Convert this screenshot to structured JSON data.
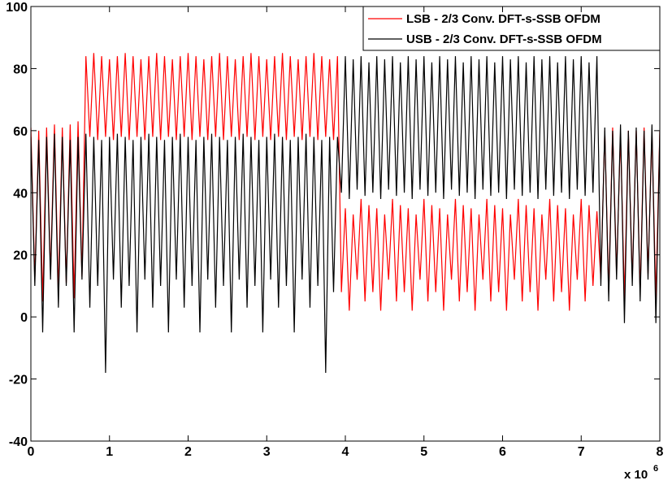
{
  "chart_data": {
    "type": "line",
    "x_multiplier": {
      "base": "x 10",
      "exponent": "6"
    },
    "xlim": [
      0,
      8
    ],
    "xticks": [
      0,
      1,
      2,
      3,
      4,
      5,
      6,
      7,
      8
    ],
    "ylim": [
      -40,
      100
    ],
    "yticks": [
      -40,
      -20,
      0,
      20,
      40,
      60,
      80,
      100
    ],
    "grid": false,
    "legend": "upper right",
    "x": [
      0,
      0.05,
      0.1,
      0.15,
      0.2,
      0.25,
      0.3,
      0.35,
      0.4,
      0.45,
      0.5,
      0.55,
      0.6,
      0.65,
      0.7,
      0.75,
      0.8,
      0.85,
      0.9,
      0.95,
      1,
      1.05,
      1.1,
      1.15,
      1.2,
      1.25,
      1.3,
      1.35,
      1.4,
      1.45,
      1.5,
      1.55,
      1.6,
      1.65,
      1.7,
      1.75,
      1.8,
      1.85,
      1.9,
      1.95,
      2,
      2.05,
      2.1,
      2.15,
      2.2,
      2.25,
      2.3,
      2.35,
      2.4,
      2.45,
      2.5,
      2.55,
      2.6,
      2.65,
      2.7,
      2.75,
      2.8,
      2.85,
      2.9,
      2.95,
      3,
      3.05,
      3.1,
      3.15,
      3.2,
      3.25,
      3.3,
      3.35,
      3.4,
      3.45,
      3.5,
      3.55,
      3.6,
      3.65,
      3.7,
      3.75,
      3.8,
      3.85,
      3.9,
      3.95,
      4,
      4.05,
      4.1,
      4.15,
      4.2,
      4.25,
      4.3,
      4.35,
      4.4,
      4.45,
      4.5,
      4.55,
      4.6,
      4.65,
      4.7,
      4.75,
      4.8,
      4.85,
      4.9,
      4.95,
      5,
      5.05,
      5.1,
      5.15,
      5.2,
      5.25,
      5.3,
      5.35,
      5.4,
      5.45,
      5.5,
      5.55,
      5.6,
      5.65,
      5.7,
      5.75,
      5.8,
      5.85,
      5.9,
      5.95,
      6,
      6.05,
      6.1,
      6.15,
      6.2,
      6.25,
      6.3,
      6.35,
      6.4,
      6.45,
      6.5,
      6.55,
      6.6,
      6.65,
      6.7,
      6.75,
      6.8,
      6.85,
      6.9,
      6.95,
      7,
      7.05,
      7.1,
      7.15,
      7.2,
      7.25,
      7.3,
      7.35,
      7.4,
      7.45,
      7.5,
      7.55,
      7.6,
      7.65,
      7.7,
      7.75,
      7.8,
      7.85,
      7.9,
      7.95,
      8
    ],
    "series": [
      {
        "name": "LSB - 2/3 Conv. DFT-s-SSB OFDM",
        "color": "#ff0000",
        "values": [
          61,
          12,
          60,
          5,
          61,
          14,
          62,
          8,
          61,
          11,
          62,
          6,
          63,
          13,
          84,
          58,
          85,
          57,
          84,
          58,
          83,
          57,
          84,
          58,
          85,
          57,
          84,
          58,
          83,
          57,
          84,
          58,
          85,
          57,
          84,
          58,
          83,
          57,
          84,
          58,
          85,
          57,
          84,
          58,
          83,
          57,
          84,
          58,
          85,
          57,
          84,
          58,
          83,
          57,
          84,
          58,
          85,
          57,
          84,
          58,
          83,
          57,
          84,
          58,
          85,
          57,
          84,
          58,
          83,
          57,
          84,
          58,
          85,
          57,
          84,
          58,
          83,
          57,
          84,
          8,
          35,
          2,
          33,
          12,
          38,
          5,
          36,
          8,
          35,
          2,
          33,
          12,
          38,
          5,
          36,
          8,
          35,
          2,
          33,
          12,
          38,
          5,
          36,
          8,
          35,
          2,
          33,
          12,
          38,
          5,
          36,
          8,
          35,
          2,
          33,
          12,
          38,
          5,
          36,
          8,
          35,
          2,
          33,
          12,
          38,
          5,
          36,
          8,
          35,
          2,
          33,
          12,
          38,
          5,
          36,
          8,
          35,
          2,
          33,
          12,
          38,
          5,
          36,
          10,
          34,
          12,
          60,
          8,
          61,
          14,
          59,
          6,
          60,
          12,
          60,
          8,
          61,
          14,
          59,
          6,
          60
        ]
      },
      {
        "name": "USB - 2/3 Conv. DFT-s-SSB OFDM",
        "color": "#000000",
        "values": [
          58,
          10,
          57,
          -5,
          58,
          12,
          59,
          3,
          58,
          10,
          57,
          -5,
          58,
          12,
          59,
          3,
          58,
          10,
          57,
          -18,
          58,
          12,
          59,
          3,
          58,
          10,
          57,
          -5,
          58,
          12,
          59,
          3,
          58,
          10,
          57,
          -5,
          58,
          12,
          59,
          3,
          58,
          10,
          57,
          -5,
          58,
          12,
          59,
          3,
          58,
          10,
          57,
          -5,
          58,
          12,
          59,
          3,
          58,
          10,
          57,
          -5,
          58,
          12,
          59,
          3,
          58,
          10,
          57,
          -5,
          58,
          12,
          59,
          3,
          58,
          10,
          57,
          -18,
          58,
          8,
          58,
          40,
          84,
          38,
          83,
          41,
          84,
          39,
          82,
          40,
          84,
          38,
          83,
          41,
          84,
          39,
          82,
          40,
          84,
          38,
          83,
          41,
          84,
          39,
          82,
          40,
          84,
          38,
          83,
          41,
          84,
          39,
          82,
          40,
          84,
          38,
          83,
          41,
          84,
          39,
          82,
          40,
          84,
          38,
          83,
          41,
          84,
          39,
          82,
          40,
          84,
          38,
          83,
          41,
          84,
          39,
          82,
          40,
          84,
          38,
          83,
          41,
          84,
          39,
          82,
          40,
          84,
          10,
          61,
          5,
          60,
          12,
          62,
          -2,
          60,
          10,
          61,
          5,
          60,
          12,
          62,
          -2,
          60
        ]
      }
    ]
  }
}
